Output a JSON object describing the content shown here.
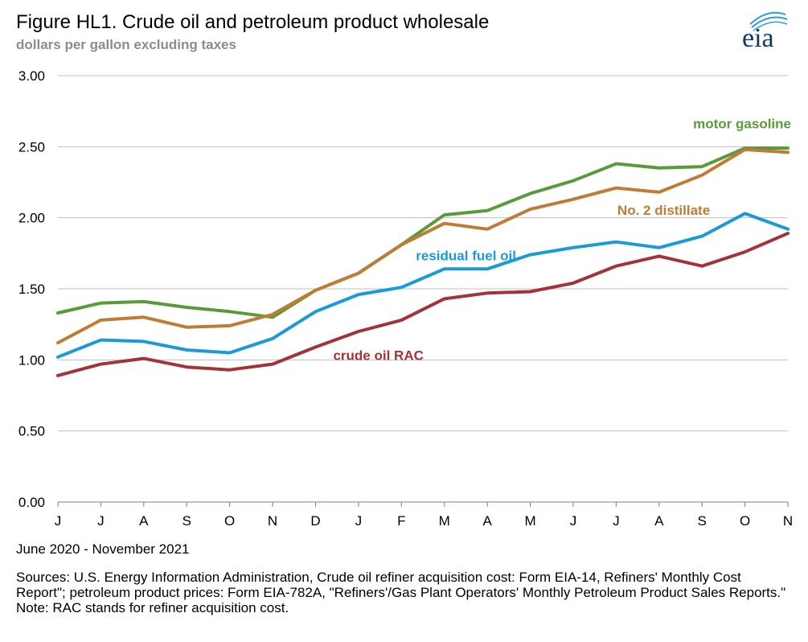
{
  "header": {
    "title": "Figure HL1.  Crude oil and petroleum product wholesale",
    "subtitle": "dollars per gallon excluding taxes",
    "logo_text": "eia"
  },
  "footer": {
    "date_range": "June 2020 - November 2021",
    "sources": [
      "Sources:  U.S. Energy Information Administration, Crude oil refiner acquisition cost:  Form EIA-14, Refiners' Monthly  Cost Report\"; petroleum product prices:  Form EIA-782A, \"Refiners'/Gas Plant Operators' Monthly Petroleum Product Sales Reports.\"",
      "Note:  RAC stands for refiner acquisition cost."
    ]
  },
  "colors": {
    "motor_gasoline": "#5b9a3a",
    "distillate": "#c07c34",
    "residual": "#1b9ad6",
    "crude": "#a33239",
    "grid": "#bfbfbf",
    "logo_arc": "#2e9cd6",
    "logo_text": "#0d3a67"
  },
  "chart_data": {
    "type": "line",
    "categories": [
      "J",
      "J",
      "A",
      "S",
      "O",
      "N",
      "D",
      "J",
      "F",
      "M",
      "A",
      "M",
      "J",
      "J",
      "A",
      "S",
      "O",
      "N"
    ],
    "ylim": [
      0,
      3
    ],
    "yticks": [
      "0.00",
      "0.50",
      "1.00",
      "1.50",
      "2.00",
      "2.50",
      "3.00"
    ],
    "grid": true,
    "series": [
      {
        "key": "motor_gasoline",
        "name": "motor gasoline",
        "color": "#5b9a3a",
        "values": [
          1.33,
          1.4,
          1.41,
          1.37,
          1.34,
          1.3,
          1.49,
          1.61,
          1.81,
          2.02,
          2.05,
          2.17,
          2.26,
          2.38,
          2.35,
          2.36,
          2.49,
          2.49
        ]
      },
      {
        "key": "distillate",
        "name": "No. 2 distillate",
        "color": "#c07c34",
        "values": [
          1.12,
          1.28,
          1.3,
          1.23,
          1.24,
          1.32,
          1.49,
          1.61,
          1.81,
          1.96,
          1.92,
          2.06,
          2.13,
          2.21,
          2.18,
          2.3,
          2.48,
          2.46
        ]
      },
      {
        "key": "residual",
        "name": "residual fuel oil",
        "color": "#1b9ad6",
        "values": [
          1.02,
          1.14,
          1.13,
          1.07,
          1.05,
          1.15,
          1.34,
          1.46,
          1.51,
          1.64,
          1.64,
          1.74,
          1.79,
          1.83,
          1.79,
          1.87,
          2.03,
          1.92
        ]
      },
      {
        "key": "crude",
        "name": "crude oil RAC",
        "color": "#a33239",
        "values": [
          0.89,
          0.97,
          1.01,
          0.95,
          0.93,
          0.97,
          1.09,
          1.2,
          1.28,
          1.43,
          1.47,
          1.48,
          1.54,
          1.66,
          1.73,
          1.66,
          1.76,
          1.89
        ]
      }
    ]
  }
}
